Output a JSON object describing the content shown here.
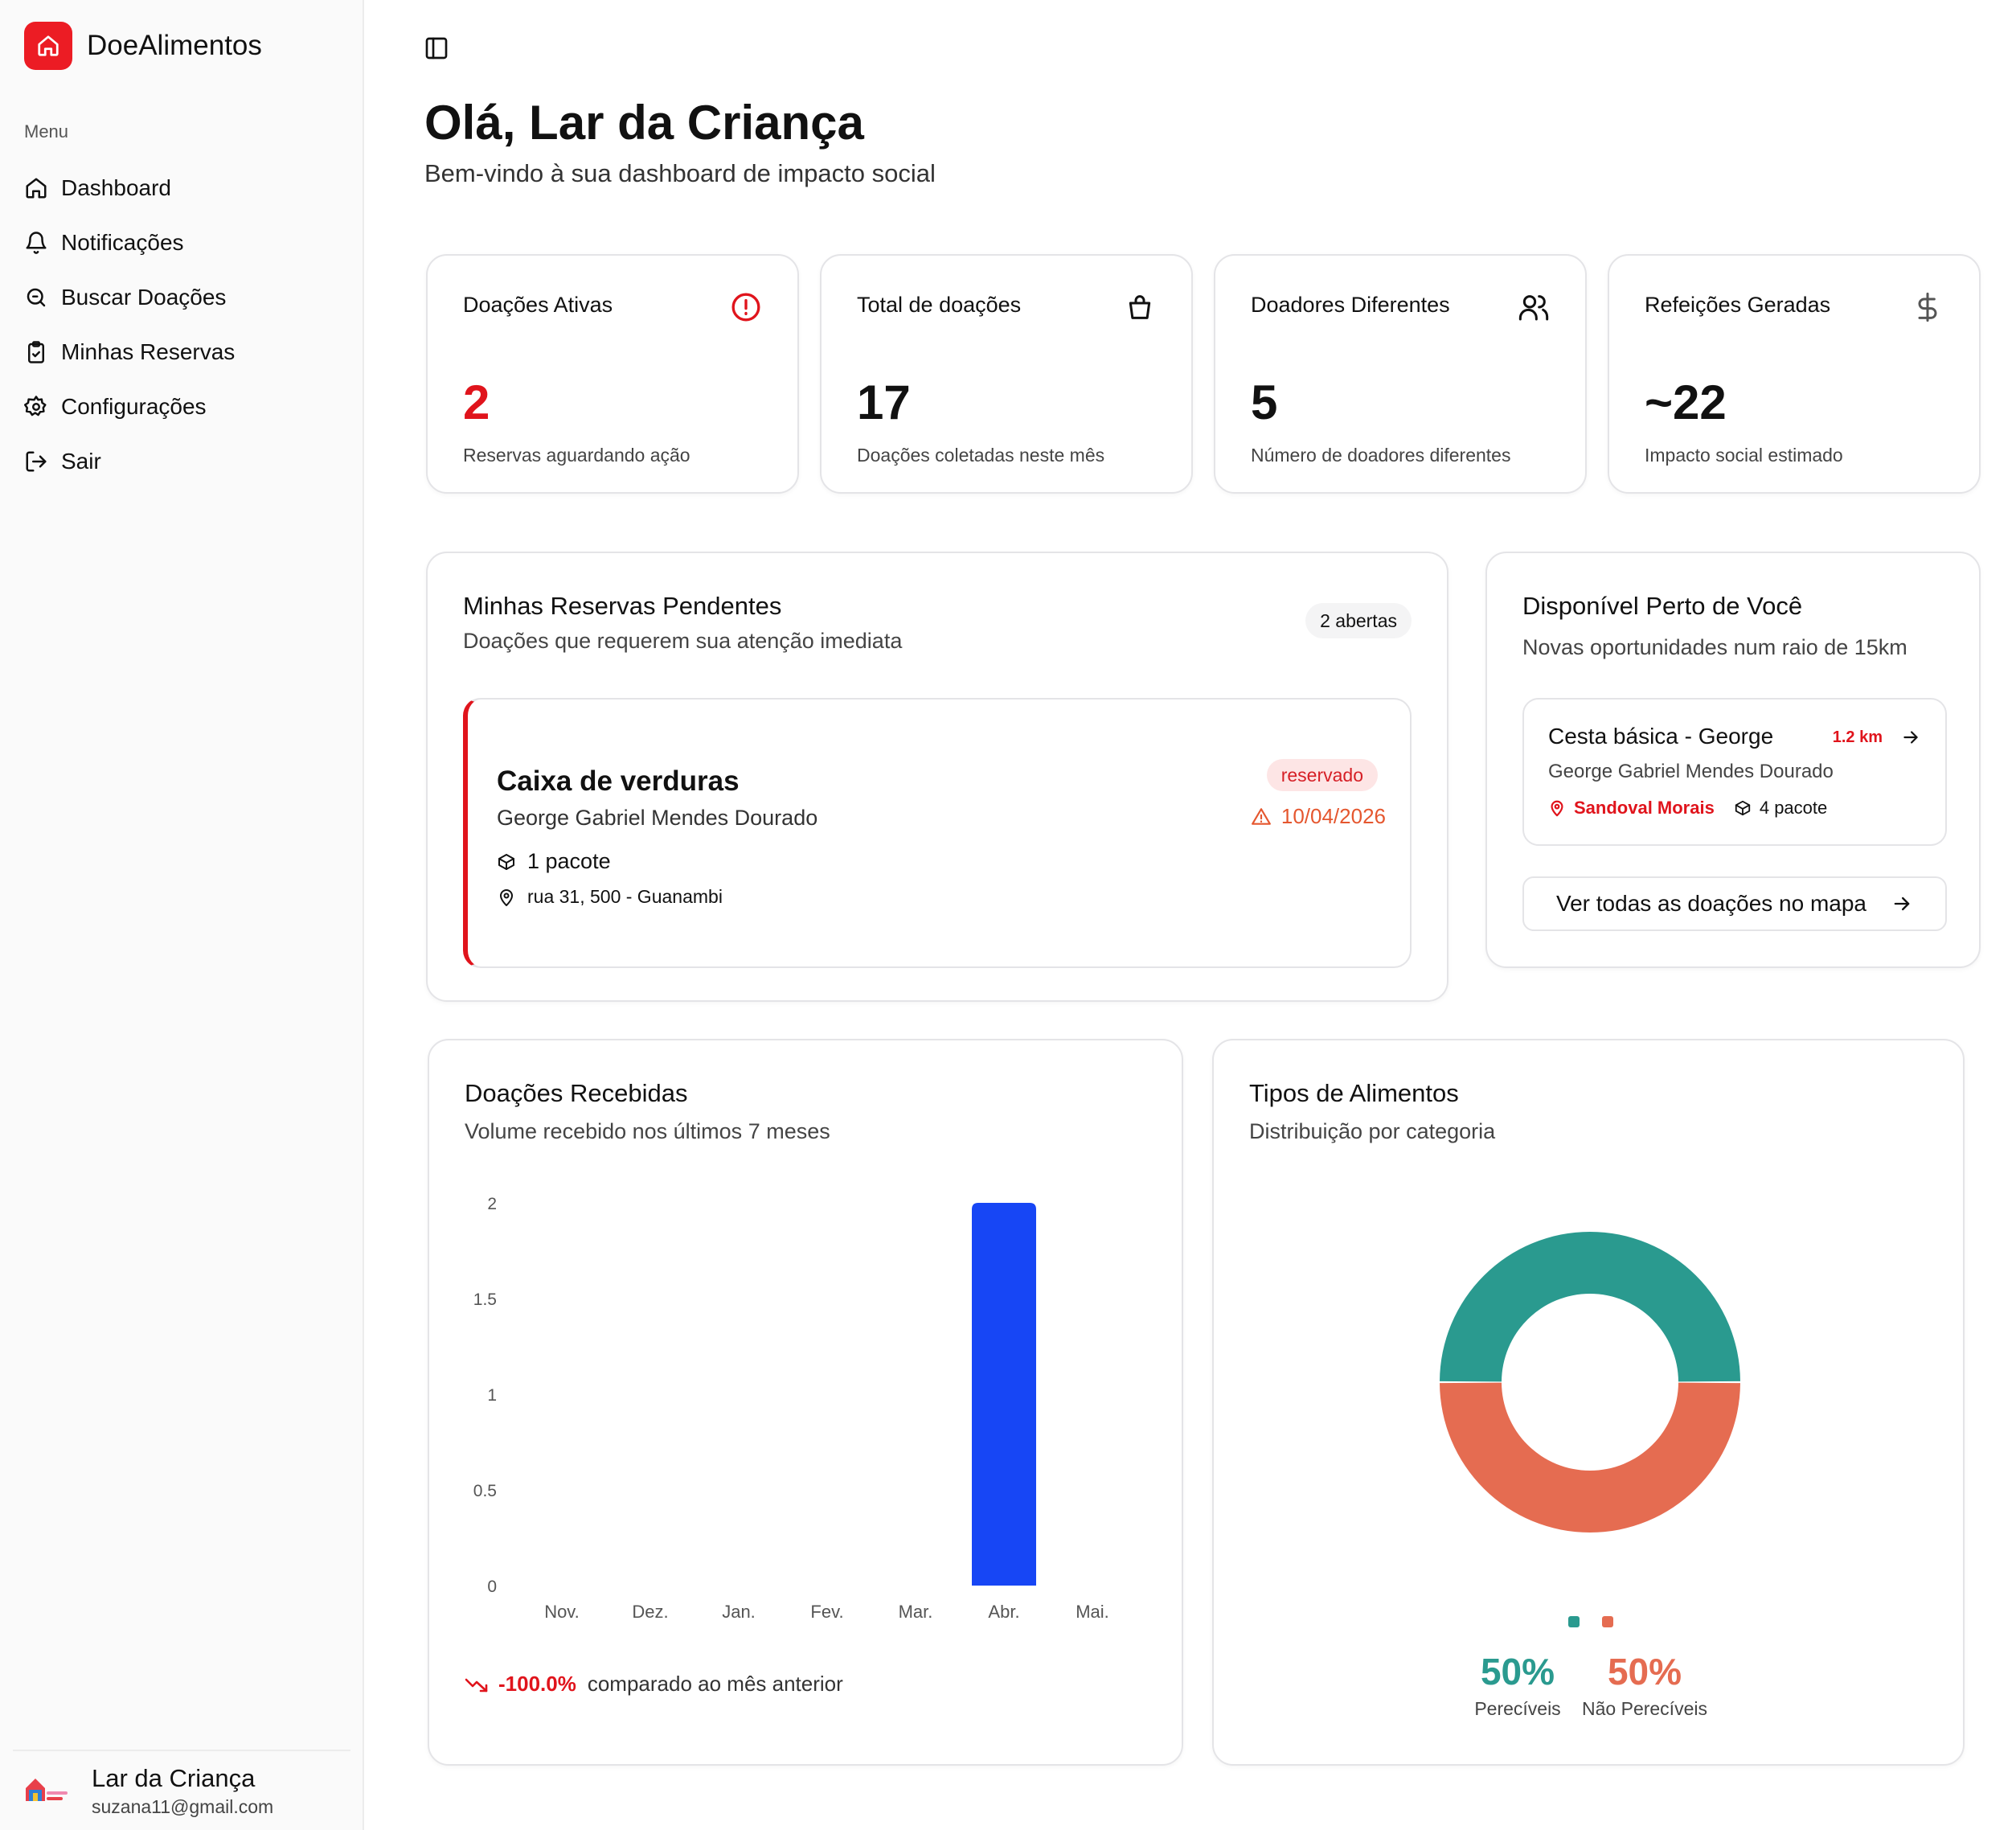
{
  "brand": {
    "name": "DoeAlimentos"
  },
  "sidebar": {
    "menu_label": "Menu",
    "items": [
      {
        "label": "Dashboard",
        "icon": "home-icon"
      },
      {
        "label": "Notificações",
        "icon": "bell-icon"
      },
      {
        "label": "Buscar Doações",
        "icon": "search-icon"
      },
      {
        "label": "Minhas Reservas",
        "icon": "clipboard-icon"
      },
      {
        "label": "Configurações",
        "icon": "gear-icon"
      },
      {
        "label": "Sair",
        "icon": "logout-icon"
      }
    ],
    "user": {
      "name": "Lar da Criança",
      "email": "suzana11@gmail.com"
    }
  },
  "header": {
    "greeting": "Olá, Lar da Criança",
    "subtitle": "Bem-vindo à sua dashboard de impacto social"
  },
  "stats": [
    {
      "title": "Doações Ativas",
      "value": "2",
      "desc": "Reservas aguardando ação",
      "icon": "alert-circle-icon",
      "value_color": "#e0141c"
    },
    {
      "title": "Total de doações",
      "value": "17",
      "desc": "Doações coletadas neste mês",
      "icon": "shopping-bag-icon",
      "value_color": "#111111"
    },
    {
      "title": "Doadores Diferentes",
      "value": "5",
      "desc": "Número de doadores diferentes",
      "icon": "users-icon",
      "value_color": "#111111"
    },
    {
      "title": "Refeições Geradas",
      "value": "~22",
      "desc": "Impacto social estimado",
      "icon": "dollar-icon",
      "value_color": "#111111"
    }
  ],
  "pending": {
    "title": "Minhas Reservas Pendentes",
    "subtitle": "Doações que requerem sua atenção imediata",
    "badge": "2 abertas",
    "item": {
      "title": "Caixa de verduras",
      "donor": "George Gabriel Mendes Dourado",
      "quantity": "1 pacote",
      "address": "rua 31, 500 - Guanambi",
      "status": "reservado",
      "date": "10/04/2026"
    }
  },
  "nearby": {
    "title": "Disponível Perto de Você",
    "subtitle": "Novas oportunidades num raio de 15km",
    "item": {
      "title": "Cesta básica - George",
      "distance": "1.2 km",
      "donor": "George Gabriel Mendes Dourado",
      "location": "Sandoval Morais",
      "quantity": "4 pacote"
    },
    "button": "Ver todas as doações no mapa"
  },
  "received": {
    "title": "Doações Recebidas",
    "subtitle": "Volume recebido nos últimos 7 meses",
    "trend_value": "-100.0%",
    "trend_text": "comparado ao mês anterior"
  },
  "types": {
    "title": "Tipos de Alimentos",
    "subtitle": "Distribuição por categoria"
  },
  "chart_data": [
    {
      "type": "bar",
      "categories": [
        "Nov.",
        "Dez.",
        "Jan.",
        "Fev.",
        "Mar.",
        "Abr.",
        "Mai."
      ],
      "values": [
        0,
        0,
        0,
        0,
        0,
        2,
        0
      ],
      "yticks": [
        "0",
        "0.5",
        "1",
        "1.5",
        "2"
      ],
      "ylim": [
        0,
        2
      ],
      "color": "#1746f5"
    },
    {
      "type": "pie",
      "donut": true,
      "slices": [
        {
          "label": "Perecíveis",
          "value": 50,
          "display": "50%",
          "color": "#2a9a8f"
        },
        {
          "label": "Não Perecíveis",
          "value": 50,
          "display": "50%",
          "color": "#e56c51"
        }
      ]
    }
  ]
}
